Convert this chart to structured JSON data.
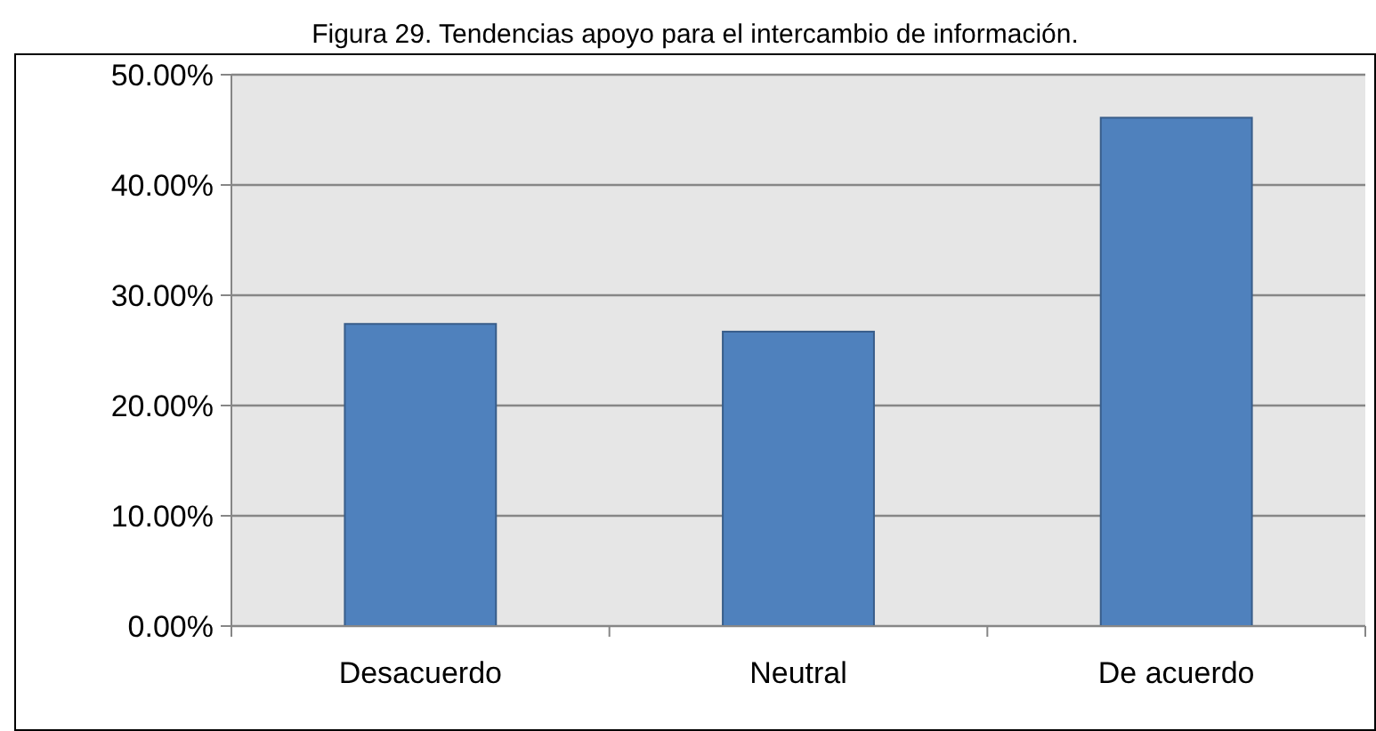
{
  "chart_data": {
    "type": "bar",
    "title": "Figura 29. Tendencias apoyo para el intercambio de información.",
    "categories": [
      "Desacuerdo",
      "Neutral",
      "De acuerdo"
    ],
    "values": [
      27.4,
      26.7,
      46.1
    ],
    "color": "#4f81bd",
    "ylim": [
      0,
      50
    ],
    "yticks": [
      {
        "value": 0,
        "label": "0.00%"
      },
      {
        "value": 10,
        "label": "10.00%"
      },
      {
        "value": 20,
        "label": "20.00%"
      },
      {
        "value": 30,
        "label": "30.00%"
      },
      {
        "value": 40,
        "label": "40.00%"
      },
      {
        "value": 50,
        "label": "50.00%"
      }
    ],
    "grid": "y"
  }
}
